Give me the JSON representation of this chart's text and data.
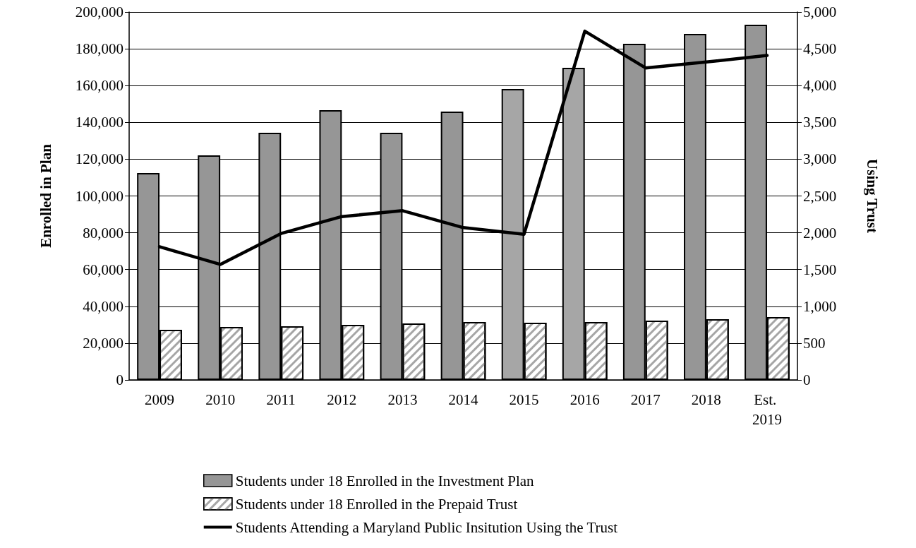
{
  "chart_data": {
    "type": "bar",
    "ylabel": "Enrolled in Plan",
    "y2label": "Using Trust",
    "categories": [
      "2009",
      "2010",
      "2011",
      "2012",
      "2013",
      "2014",
      "2015",
      "2016",
      "2017",
      "2018",
      "Est. 2019"
    ],
    "series": [
      {
        "name": "Students under 18 Enrolled in the Investment Plan",
        "color": "#969696",
        "colors": [
          "#969696",
          "#969696",
          "#969696",
          "#969696",
          "#969696",
          "#969696",
          "#a6a6a6",
          "#a6a6a6",
          "#969696",
          "#969696",
          "#969696"
        ],
        "values": [
          112500,
          122100,
          134400,
          146600,
          134400,
          145900,
          158200,
          169700,
          182700,
          188100,
          193100
        ]
      },
      {
        "name": "Students under 18 Enrolled in the Prepaid Trust",
        "color": "#ffffff",
        "values": [
          27300,
          28800,
          29200,
          29900,
          30700,
          31500,
          31100,
          31500,
          32200,
          33000,
          34200
        ]
      },
      {
        "name": "Students Attending a Maryland Public Insitution Using the Trust",
        "type": "line",
        "axis": "y2",
        "color": "#000000",
        "values": [
          1810,
          1570,
          1990,
          2220,
          2300,
          2070,
          1980,
          4740,
          4240,
          4320,
          4410
        ]
      }
    ],
    "ylim": [
      0,
      200000
    ],
    "yticks": [
      0,
      {
        "value": 20000,
        "label": "20,000"
      },
      {
        "value": 40000,
        "label": "40,000"
      },
      {
        "value": 60000,
        "label": "60,000"
      },
      {
        "value": 80000,
        "label": "80,000"
      },
      {
        "value": 100000,
        "label": "100,000"
      },
      {
        "value": 120000,
        "label": "120,000"
      },
      {
        "value": 140000,
        "label": "140,000"
      },
      {
        "value": 160000,
        "label": "160,000"
      },
      {
        "value": 180000,
        "label": "180,000"
      },
      {
        "value": 200000,
        "label": "200,000"
      }
    ],
    "y2lim": [
      0,
      5000
    ],
    "y2ticks": [
      0,
      500,
      {
        "value": 1000,
        "label": "1,000"
      },
      {
        "value": 1500,
        "label": "1,500"
      },
      {
        "value": 2000,
        "label": "2,000"
      },
      {
        "value": 2500,
        "label": "2,500"
      },
      {
        "value": 3000,
        "label": "3,000"
      },
      {
        "value": 3500,
        "label": "3,500"
      },
      {
        "value": 4000,
        "label": "4,000"
      },
      {
        "value": 4500,
        "label": "4,500"
      },
      {
        "value": 5000,
        "label": "5,000"
      }
    ],
    "grid": "y",
    "legend": "bottom",
    "marker": "none",
    "line_style": "solid"
  }
}
